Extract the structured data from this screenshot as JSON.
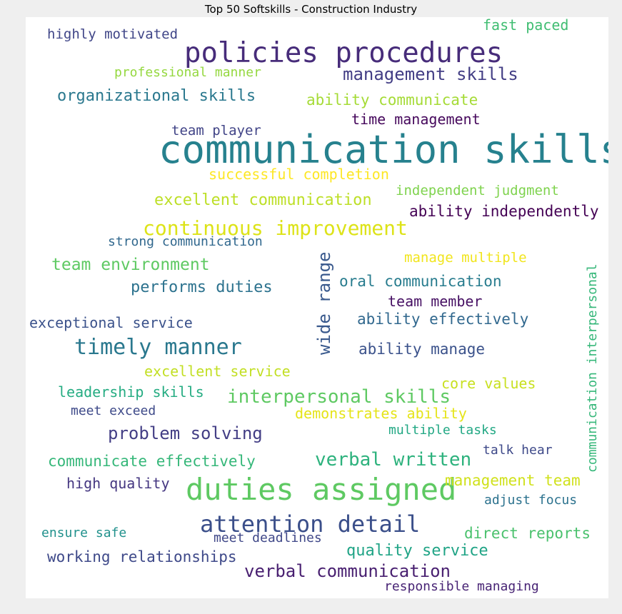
{
  "chart_data": {
    "type": "wordcloud",
    "title": "Top 50 Softskills - Construction Industry",
    "words": [
      {
        "text": "communication skills",
        "color": "#26818e"
      },
      {
        "text": "policies procedures",
        "color": "#472c7a"
      },
      {
        "text": "duties assigned",
        "color": "#5ec962"
      },
      {
        "text": "attention detail",
        "color": "#3b4f8a"
      },
      {
        "text": "continuous improvement",
        "color": "#dde318"
      },
      {
        "text": "timely manner",
        "color": "#2a788e"
      },
      {
        "text": "interpersonal skills",
        "color": "#5ec962"
      },
      {
        "text": "verbal written",
        "color": "#2db27d"
      },
      {
        "text": "verbal communication",
        "color": "#481f70"
      },
      {
        "text": "problem solving",
        "color": "#433e85"
      },
      {
        "text": "management skills",
        "color": "#433e85"
      },
      {
        "text": "wide range",
        "color": "#38588c"
      },
      {
        "text": "team environment",
        "color": "#5ec962"
      },
      {
        "text": "organizational skills",
        "color": "#2a788e"
      },
      {
        "text": "excellent communication",
        "color": "#bddf26"
      },
      {
        "text": "performs duties",
        "color": "#2c728e"
      },
      {
        "text": "quality service",
        "color": "#20a486"
      },
      {
        "text": "ability independently",
        "color": "#440154"
      },
      {
        "text": "management team",
        "color": "#d0e11c"
      },
      {
        "text": "direct reports",
        "color": "#4ac16d"
      },
      {
        "text": "ability manage",
        "color": "#3b528b"
      },
      {
        "text": "ability effectively",
        "color": "#31688e"
      },
      {
        "text": "working relationships",
        "color": "#3e4989"
      },
      {
        "text": "oral communication",
        "color": "#287c8e"
      },
      {
        "text": "ability communicate",
        "color": "#a5db36"
      },
      {
        "text": "communicate effectively",
        "color": "#35b779"
      },
      {
        "text": "successful completion",
        "color": "#fde725"
      },
      {
        "text": "excellent service",
        "color": "#c2df23"
      },
      {
        "text": "time management",
        "color": "#46085c"
      },
      {
        "text": "demonstrates ability",
        "color": "#e5e419"
      },
      {
        "text": "exceptional service",
        "color": "#3b528b"
      },
      {
        "text": "high quality",
        "color": "#453781"
      },
      {
        "text": "team member",
        "color": "#471164"
      },
      {
        "text": "leadership skills",
        "color": "#25ac82"
      },
      {
        "text": "fast paced",
        "color": "#40bd72"
      },
      {
        "text": "core values",
        "color": "#c8e020"
      },
      {
        "text": "highly motivated",
        "color": "#404688"
      },
      {
        "text": "independent judgment",
        "color": "#7fd34e"
      },
      {
        "text": "manage multiple",
        "color": "#f1e51d"
      },
      {
        "text": "team player",
        "color": "#414487"
      },
      {
        "text": "professional manner",
        "color": "#95d840"
      },
      {
        "text": "communication interpersonal",
        "color": "#35b779"
      },
      {
        "text": "talk hear",
        "color": "#3e4989"
      },
      {
        "text": "meet deadlines",
        "color": "#3f4788"
      },
      {
        "text": "adjust focus",
        "color": "#2c728e"
      },
      {
        "text": "ensure safe",
        "color": "#21918c"
      },
      {
        "text": "strong communication",
        "color": "#31688e"
      },
      {
        "text": "multiple tasks",
        "color": "#22a884"
      },
      {
        "text": "responsible managing",
        "color": "#482475"
      },
      {
        "text": "meet exceed",
        "color": "#3e4a89"
      }
    ]
  }
}
